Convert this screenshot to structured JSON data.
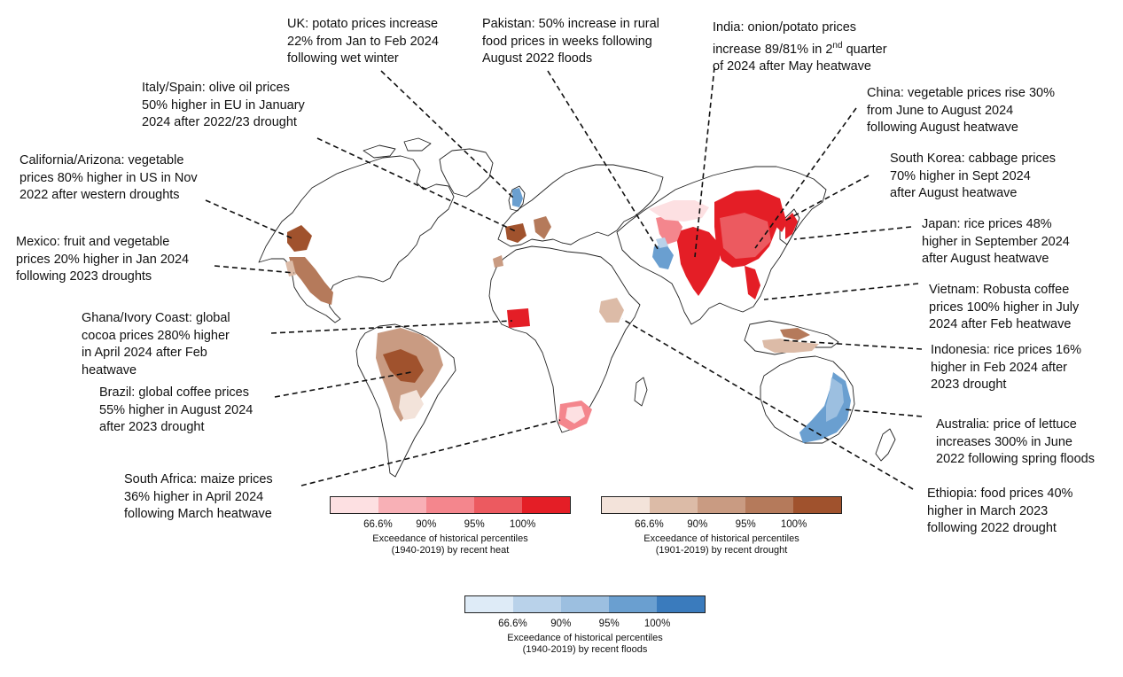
{
  "colors": {
    "heat": [
      "#fde0e2",
      "#f8b0b6",
      "#f4868d",
      "#ec5a60",
      "#e41e26"
    ],
    "drought": [
      "#f3e3da",
      "#dcbba7",
      "#c99b82",
      "#b57a5b",
      "#a0522d"
    ],
    "floods": [
      "#deebf7",
      "#b9d2ea",
      "#9cbfe0",
      "#6a9fd0",
      "#3a7bbd"
    ],
    "land_outline": "#222222",
    "leader_line": "#111111"
  },
  "annotations": [
    {
      "id": "uk",
      "lines": [
        "UK: potato prices increase",
        "22% from Jan to Feb 2024",
        "following wet winter"
      ]
    },
    {
      "id": "pakistan",
      "lines": [
        "Pakistan: 50% increase in rural",
        "food prices in weeks following",
        "August 2022 floods"
      ]
    },
    {
      "id": "india",
      "lines": [
        "India: onion/potato prices",
        "increase 89/81% in 2nd quarter",
        "of 2024 after May heatwave"
      ]
    },
    {
      "id": "italy-spain",
      "lines": [
        "Italy/Spain: olive oil prices",
        "50% higher in EU in January",
        "2024 after 2022/23 drought"
      ]
    },
    {
      "id": "china",
      "lines": [
        "China: vegetable prices rise 30%",
        "from June to August 2024",
        "following August heatwave"
      ]
    },
    {
      "id": "california",
      "lines": [
        "California/Arizona: vegetable",
        "prices 80% higher in US in Nov",
        "2022 after western droughts"
      ]
    },
    {
      "id": "south-korea",
      "lines": [
        "South Korea: cabbage prices",
        "70% higher in Sept 2024",
        "after August heatwave"
      ]
    },
    {
      "id": "mexico",
      "lines": [
        "Mexico: fruit and vegetable",
        "prices 20% higher in Jan 2024",
        "following 2023 droughts"
      ]
    },
    {
      "id": "japan",
      "lines": [
        "Japan: rice prices 48%",
        "higher in September 2024",
        "after August heatwave"
      ]
    },
    {
      "id": "vietnam",
      "lines": [
        "Vietnam: Robusta coffee",
        "prices 100% higher in July",
        "2024 after Feb heatwave"
      ]
    },
    {
      "id": "ghana",
      "lines": [
        "Ghana/Ivory Coast: global",
        "cocoa prices 280% higher",
        "in April 2024 after Feb",
        "heatwave"
      ]
    },
    {
      "id": "indonesia",
      "lines": [
        "Indonesia: rice prices 16%",
        "higher in Feb 2024 after",
        "2023 drought"
      ]
    },
    {
      "id": "brazil",
      "lines": [
        "Brazil: global coffee prices",
        "55% higher in August 2024",
        "after 2023 drought"
      ]
    },
    {
      "id": "australia",
      "lines": [
        "Australia: price of lettuce",
        "increases 300% in June",
        "2022 following spring floods"
      ]
    },
    {
      "id": "south-africa",
      "lines": [
        "South Africa: maize prices",
        "36% higher in April 2024",
        "following March heatwave"
      ]
    },
    {
      "id": "ethiopia",
      "lines": [
        "Ethiopia: food prices 40%",
        "higher in March 2023",
        "following 2022 drought"
      ]
    }
  ],
  "legends": {
    "heat": {
      "ticks": [
        "66.6%",
        "90%",
        "95%",
        "100%"
      ],
      "caption": [
        "Exceedance of historical percentiles",
        "(1940-2019) by recent heat"
      ]
    },
    "drought": {
      "ticks": [
        "66.6%",
        "90%",
        "95%",
        "100%"
      ],
      "caption": [
        "Exceedance of historical percentiles",
        "(1901-2019) by recent drought"
      ]
    },
    "floods": {
      "ticks": [
        "66.6%",
        "90%",
        "95%",
        "100%"
      ],
      "caption": [
        "Exceedance of historical percentiles",
        "(1940-2019) by recent floods"
      ]
    }
  }
}
